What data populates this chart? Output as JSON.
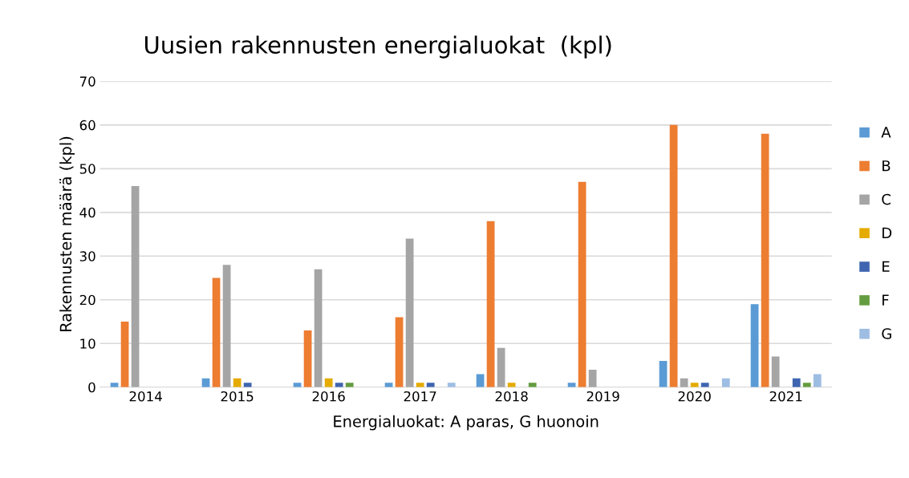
{
  "chart_data": {
    "type": "bar",
    "title": "Uusien rakennusten energialuokat  (kpl)",
    "xlabel": "Energialuokat: A paras, G huonoin",
    "ylabel": "Rakennusten määrä (kpl)",
    "categories": [
      "2014",
      "2015",
      "2016",
      "2017",
      "2018",
      "2019",
      "2020",
      "2021"
    ],
    "series": [
      {
        "name": "A",
        "color": "#5b9bd5",
        "values": [
          1,
          2,
          1,
          1,
          3,
          1,
          6,
          19
        ]
      },
      {
        "name": "B",
        "color": "#ed7d31",
        "values": [
          15,
          25,
          13,
          16,
          38,
          47,
          60,
          58
        ]
      },
      {
        "name": "C",
        "color": "#a5a5a5",
        "values": [
          46,
          28,
          27,
          34,
          9,
          4,
          2,
          7
        ]
      },
      {
        "name": "D",
        "color": "#e5ab00",
        "values": [
          0,
          2,
          2,
          1,
          1,
          0,
          1,
          0
        ]
      },
      {
        "name": "E",
        "color": "#3f65b0",
        "values": [
          0,
          1,
          1,
          1,
          0,
          0,
          1,
          2
        ]
      },
      {
        "name": "F",
        "color": "#649c40",
        "values": [
          0,
          0,
          1,
          0,
          1,
          0,
          0,
          1
        ]
      },
      {
        "name": "G",
        "color": "#9dbde3",
        "values": [
          0,
          0,
          0,
          1,
          0,
          0,
          2,
          3
        ]
      }
    ],
    "ylim": [
      0,
      70
    ],
    "yticks": [
      0,
      10,
      20,
      30,
      40,
      50,
      60,
      70
    ],
    "grid": "y",
    "legend": "right"
  }
}
